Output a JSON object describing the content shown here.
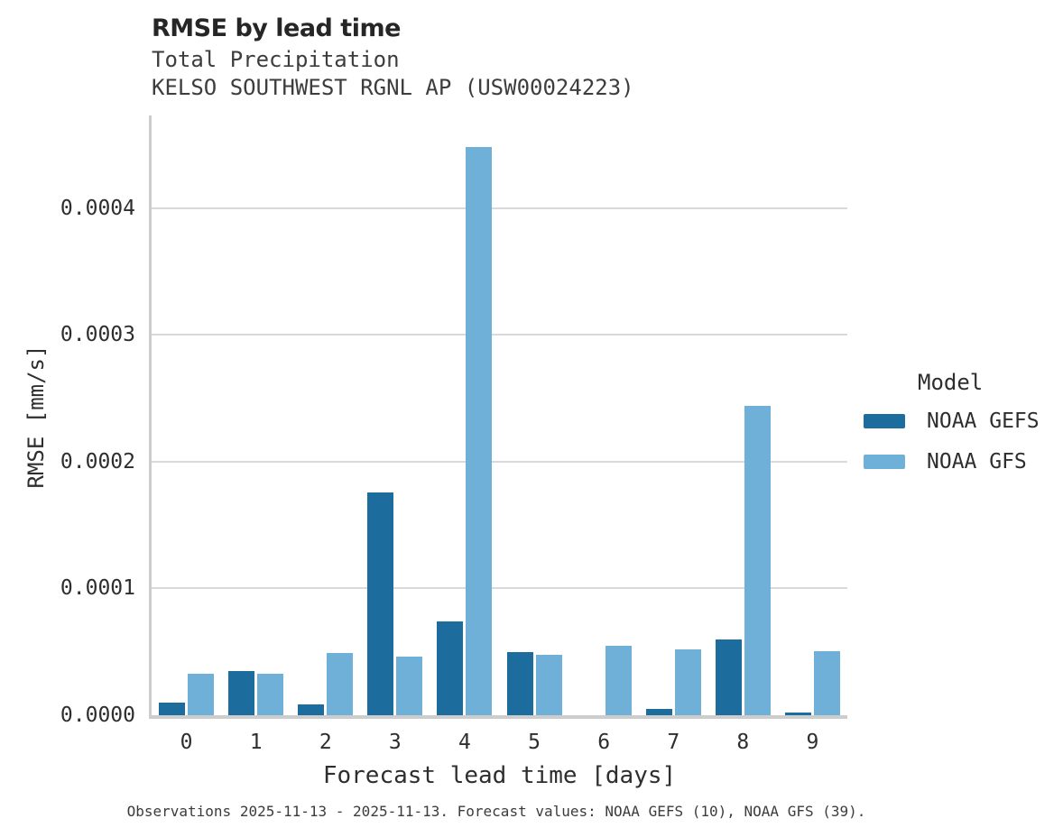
{
  "header": {
    "title": "RMSE by lead time",
    "subtitle_line1": "Total Precipitation",
    "subtitle_line2": "KELSO SOUTHWEST RGNL AP (USW00024223)"
  },
  "footer": {
    "caption": "Observations 2025-11-13 - 2025-11-13. Forecast values: NOAA GEFS (10), NOAA GFS (39)."
  },
  "legend": {
    "title": "Model",
    "entries": [
      {
        "label": "NOAA GEFS",
        "color": "#1c6d9e"
      },
      {
        "label": "NOAA GFS",
        "color": "#6fb0d8"
      }
    ]
  },
  "colors": {
    "gefs_bar": "#1c6d9e",
    "gfs_bar": "#6fb0d8",
    "gridline": "#d9d9d9",
    "spine": "#cdcdcd"
  },
  "chart_data": {
    "type": "bar",
    "title": "RMSE by lead time",
    "subtitle": "Total Precipitation — KELSO SOUTHWEST RGNL AP (USW00024223)",
    "xlabel": "Forecast lead time [days]",
    "ylabel": "RMSE [mm/s]",
    "categories": [
      "0",
      "1",
      "2",
      "3",
      "4",
      "5",
      "6",
      "7",
      "8",
      "9"
    ],
    "series": [
      {
        "name": "NOAA GEFS",
        "color": "#1c6d9e",
        "values": [
          1e-05,
          3.5e-05,
          8.5e-06,
          0.000176,
          7.4e-05,
          5e-05,
          null,
          5e-06,
          6e-05,
          2e-06
        ]
      },
      {
        "name": "NOAA GFS",
        "color": "#6fb0d8",
        "values": [
          3.25e-05,
          3.3e-05,
          4.9e-05,
          4.6e-05,
          0.000448,
          4.75e-05,
          5.5e-05,
          5.2e-05,
          0.000244,
          5.05e-05
        ]
      }
    ],
    "ylim": [
      0,
      0.000473
    ],
    "yticks": [
      0.0,
      0.0001,
      0.0002,
      0.0003,
      0.0004
    ],
    "ytick_labels": [
      "0.0000",
      "0.0001",
      "0.0002",
      "0.0003",
      "0.0004"
    ],
    "grid": "horizontal",
    "legend_position": "right",
    "legend_title": "Model"
  }
}
